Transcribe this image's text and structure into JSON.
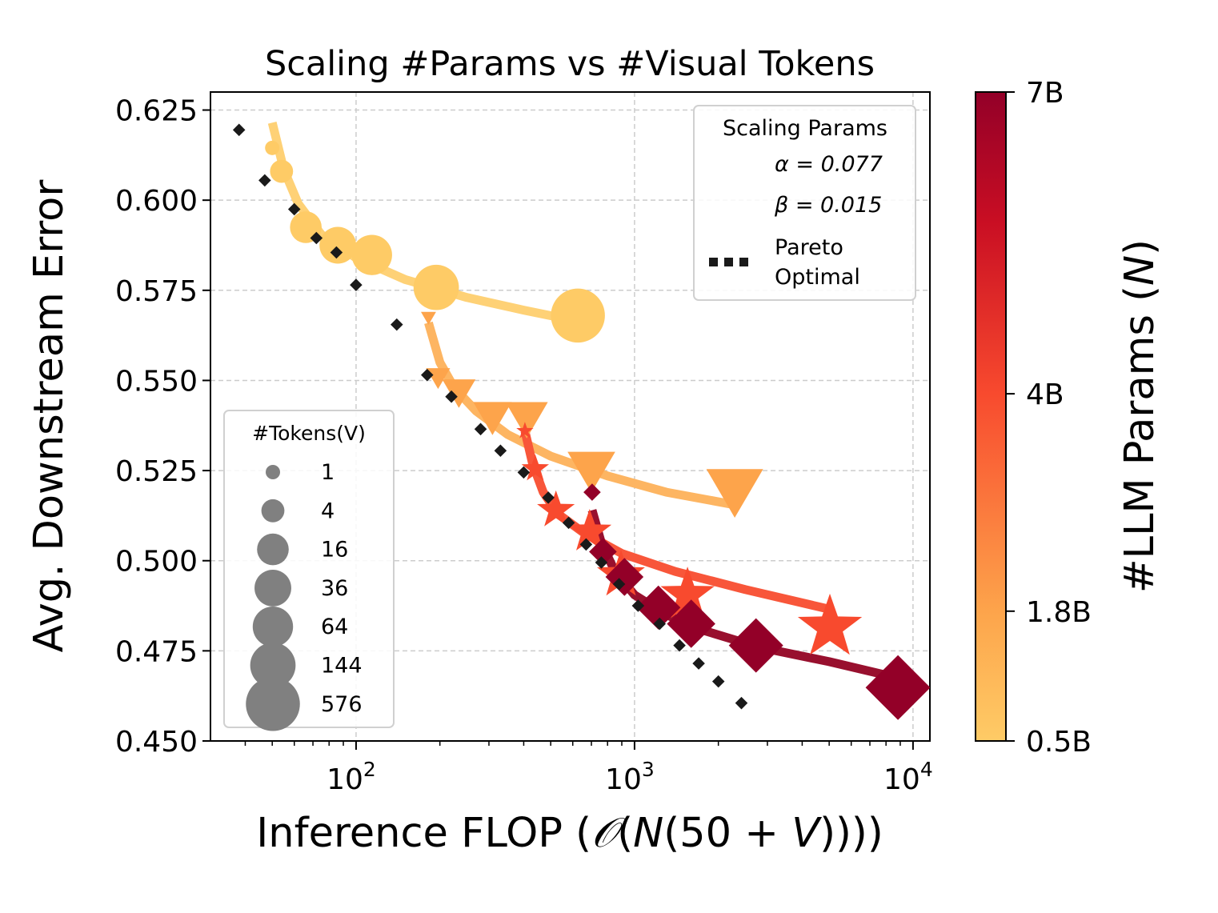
{
  "chart_data": {
    "type": "scatter",
    "title": "Scaling #Params vs #Visual Tokens",
    "xlabel_text": "Inference FLOP (",
    "xlabel_big_o": "𝒪",
    "xlabel_open": "(",
    "xlabel_n": "N",
    "xlabel_mid": "(50 + ",
    "xlabel_v": "V",
    "xlabel_close": "))))",
    "ylabel": "Avg. Downstream Error",
    "xscale": "log",
    "xlim": [
      30,
      11500
    ],
    "ylim": [
      0.45,
      0.63
    ],
    "x_ticks": [
      {
        "base": "10",
        "exp": "2",
        "value": 100
      },
      {
        "base": "10",
        "exp": "3",
        "value": 1000
      },
      {
        "base": "10",
        "exp": "4",
        "value": 10000
      }
    ],
    "y_ticks": [
      "0.450",
      "0.475",
      "0.500",
      "0.525",
      "0.550",
      "0.575",
      "0.600",
      "0.625"
    ],
    "grid": true,
    "colorbar": {
      "label_prefix": "#LLM Params (",
      "label_var": "N",
      "label_suffix": ")",
      "ticks": [
        {
          "label": "0.5B",
          "frac": 0.0
        },
        {
          "label": "1.8B",
          "frac": 0.2
        },
        {
          "label": "4B",
          "frac": 0.535
        },
        {
          "label": "7B",
          "frac": 1.0
        }
      ],
      "color_low": "#fecb66",
      "color_high": "#930028"
    },
    "series": [
      {
        "name": "0.5B",
        "marker": "circle",
        "color": "#fecb66",
        "line_color": "#fed176",
        "points": [
          {
            "x": 50,
            "y": 0.6145,
            "tokens": 1
          },
          {
            "x": 54,
            "y": 0.608,
            "tokens": 4
          },
          {
            "x": 66,
            "y": 0.5925,
            "tokens": 16
          },
          {
            "x": 86,
            "y": 0.5875,
            "tokens": 36
          },
          {
            "x": 114,
            "y": 0.5848,
            "tokens": 64
          },
          {
            "x": 194,
            "y": 0.5758,
            "tokens": 144
          },
          {
            "x": 626,
            "y": 0.568,
            "tokens": 576
          }
        ],
        "fit": [
          [
            50,
            0.6215
          ],
          [
            55,
            0.6085
          ],
          [
            62,
            0.599
          ],
          [
            75,
            0.5905
          ],
          [
            100,
            0.584
          ],
          [
            150,
            0.578
          ],
          [
            250,
            0.573
          ],
          [
            400,
            0.5695
          ],
          [
            620,
            0.5665
          ]
        ]
      },
      {
        "name": "1.8B",
        "marker": "triangle-down",
        "color": "#fda44b",
        "line_color": "#fdb562",
        "points": [
          {
            "x": 182,
            "y": 0.5675,
            "tokens": 1
          },
          {
            "x": 197,
            "y": 0.551,
            "tokens": 4
          },
          {
            "x": 234,
            "y": 0.547,
            "tokens": 16
          },
          {
            "x": 309,
            "y": 0.5402,
            "tokens": 36
          },
          {
            "x": 410,
            "y": 0.5398,
            "tokens": 64
          },
          {
            "x": 700,
            "y": 0.5255,
            "tokens": 144
          },
          {
            "x": 2290,
            "y": 0.5198,
            "tokens": 576
          }
        ],
        "fit": [
          [
            182,
            0.566
          ],
          [
            200,
            0.555
          ],
          [
            225,
            0.548
          ],
          [
            270,
            0.5415
          ],
          [
            350,
            0.535
          ],
          [
            500,
            0.529
          ],
          [
            800,
            0.5235
          ],
          [
            1300,
            0.519
          ],
          [
            2290,
            0.5155
          ]
        ]
      },
      {
        "name": "4B",
        "marker": "star",
        "color": "#f84a2e",
        "line_color": "#f8563a",
        "points": [
          {
            "x": 404,
            "y": 0.536,
            "tokens": 1
          },
          {
            "x": 440,
            "y": 0.5255,
            "tokens": 4
          },
          {
            "x": 522,
            "y": 0.514,
            "tokens": 16
          },
          {
            "x": 690,
            "y": 0.508,
            "tokens": 36
          },
          {
            "x": 894,
            "y": 0.496,
            "tokens": 64
          },
          {
            "x": 1550,
            "y": 0.4905,
            "tokens": 144
          },
          {
            "x": 5030,
            "y": 0.4815,
            "tokens": 576
          }
        ],
        "fit": [
          [
            404,
            0.536
          ],
          [
            430,
            0.527
          ],
          [
            470,
            0.519
          ],
          [
            530,
            0.513
          ],
          [
            650,
            0.508
          ],
          [
            900,
            0.502
          ],
          [
            1400,
            0.497
          ],
          [
            2500,
            0.492
          ],
          [
            5030,
            0.4865
          ]
        ]
      },
      {
        "name": "7B",
        "marker": "diamond",
        "color": "#930028",
        "line_color": "#98102e",
        "points": [
          {
            "x": 704,
            "y": 0.519,
            "tokens": 1
          },
          {
            "x": 770,
            "y": 0.5025,
            "tokens": 4
          },
          {
            "x": 920,
            "y": 0.4955,
            "tokens": 16
          },
          {
            "x": 1218,
            "y": 0.487,
            "tokens": 36
          },
          {
            "x": 1597,
            "y": 0.4825,
            "tokens": 64
          },
          {
            "x": 2730,
            "y": 0.4765,
            "tokens": 144
          },
          {
            "x": 8830,
            "y": 0.4648,
            "tokens": 576
          }
        ],
        "fit": [
          [
            704,
            0.514
          ],
          [
            760,
            0.505
          ],
          [
            850,
            0.497
          ],
          [
            1000,
            0.4905
          ],
          [
            1300,
            0.485
          ],
          [
            1800,
            0.4805
          ],
          [
            2800,
            0.476
          ],
          [
            5000,
            0.472
          ],
          [
            8830,
            0.4675
          ]
        ]
      }
    ],
    "pareto": {
      "label_line1": "Pareto",
      "label_line2": "Optimal",
      "points": [
        [
          38,
          0.6195
        ],
        [
          47,
          0.6055
        ],
        [
          60,
          0.5975
        ],
        [
          72,
          0.5895
        ],
        [
          85,
          0.5855
        ],
        [
          100,
          0.5765
        ],
        [
          140,
          0.5655
        ],
        [
          180,
          0.5515
        ],
        [
          220,
          0.5455
        ],
        [
          280,
          0.5365
        ],
        [
          330,
          0.5305
        ],
        [
          400,
          0.5245
        ],
        [
          490,
          0.5175
        ],
        [
          580,
          0.5105
        ],
        [
          670,
          0.5045
        ],
        [
          760,
          0.4995
        ],
        [
          880,
          0.4935
        ],
        [
          1030,
          0.4875
        ],
        [
          1230,
          0.4825
        ],
        [
          1450,
          0.4765
        ],
        [
          1700,
          0.4715
        ],
        [
          2000,
          0.4665
        ],
        [
          2420,
          0.4605
        ]
      ]
    },
    "legend_params": {
      "title": "Scaling Params",
      "alpha_label": "α = 0.077",
      "beta_label": "β = 0.015",
      "placement": "top-right"
    },
    "legend_tokens": {
      "title": "#Tokens(V)",
      "placement": "bottom-left",
      "entries": [
        "1",
        "4",
        "16",
        "36",
        "64",
        "144",
        "576"
      ],
      "marker_color": "#808080"
    }
  }
}
